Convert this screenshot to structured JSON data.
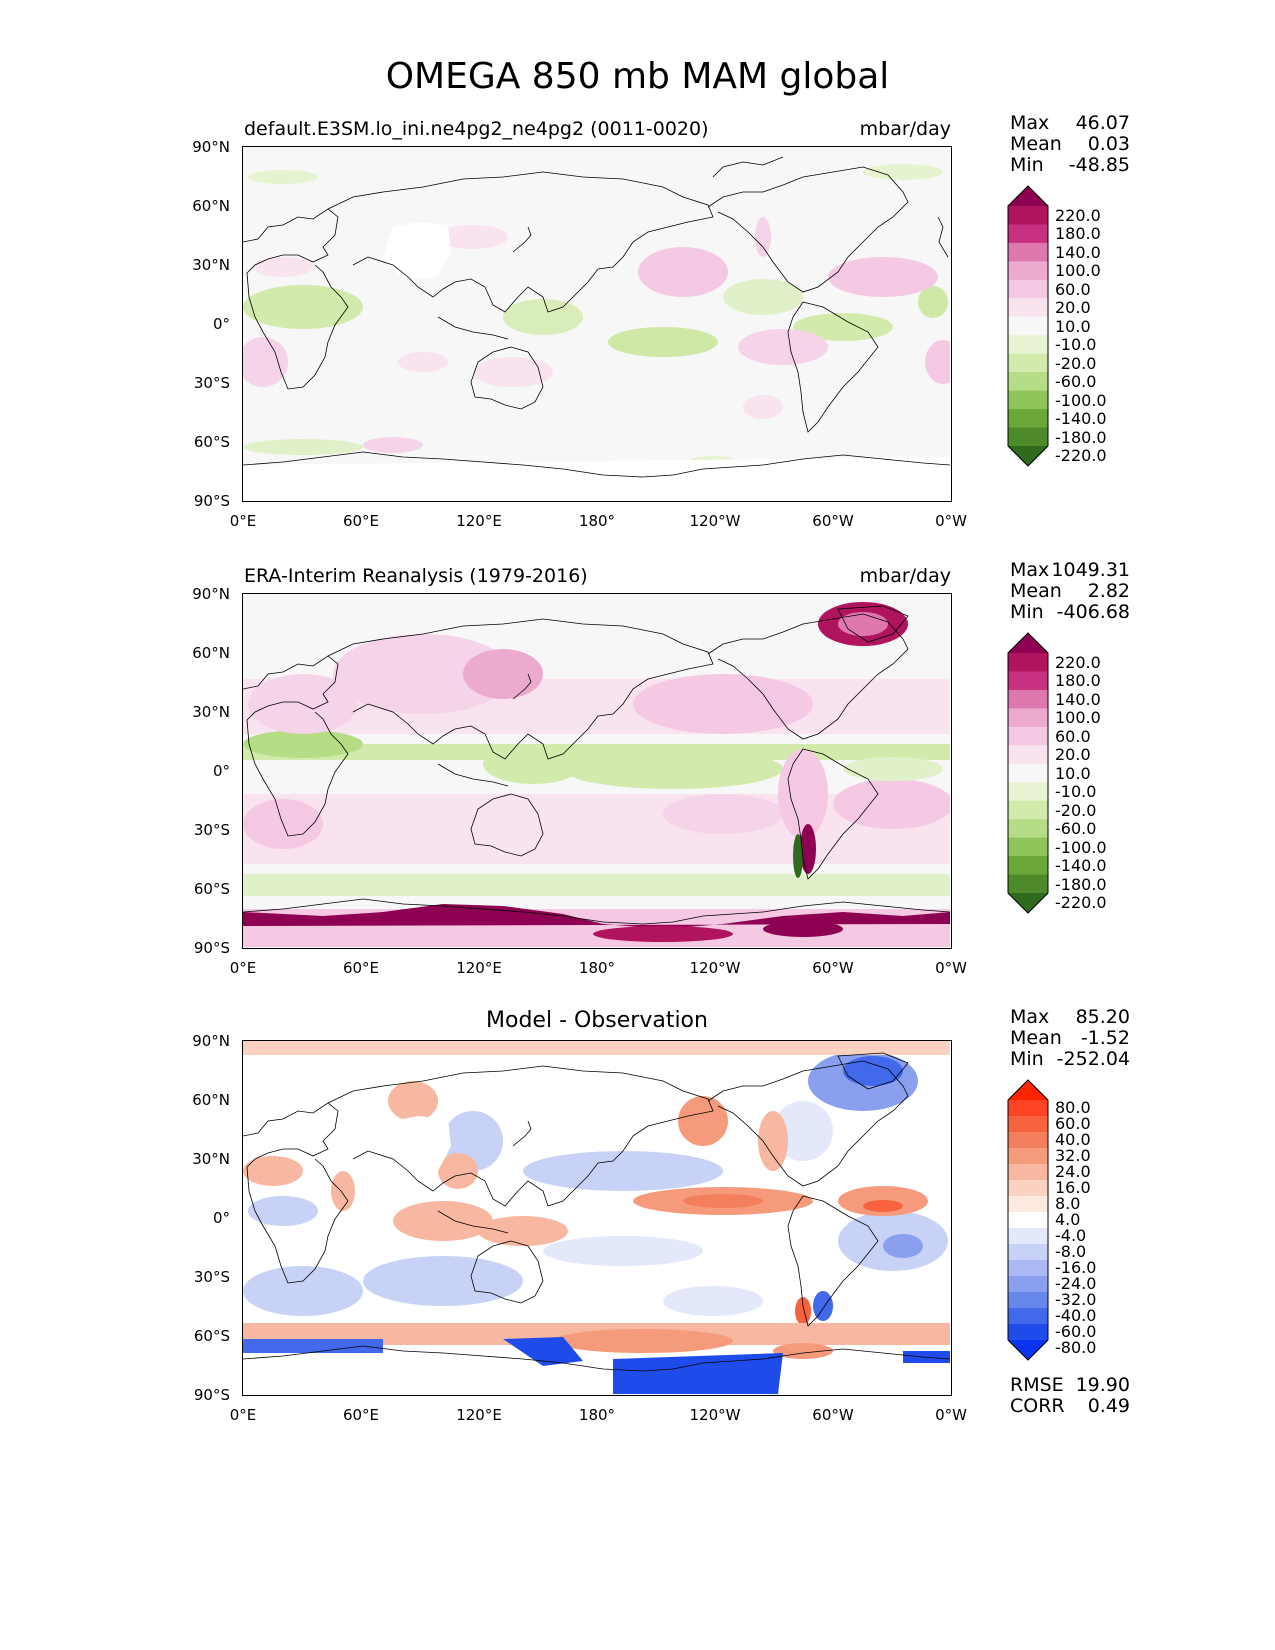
{
  "title": "OMEGA 850 mb MAM global",
  "panels": [
    {
      "title": "default.E3SM.lo_ini.ne4pg2_ne4pg2 (0011-0020)",
      "units": "mbar/day",
      "stats": [
        {
          "label": "Max",
          "value": "46.07"
        },
        {
          "label": "Mean",
          "value": "0.03"
        },
        {
          "label": "Min",
          "value": "-48.85"
        }
      ]
    },
    {
      "title": "ERA-Interim Reanalysis (1979-2016)",
      "units": "mbar/day",
      "stats": [
        {
          "label": "Max",
          "value": "1049.31"
        },
        {
          "label": "Mean",
          "value": "2.82"
        },
        {
          "label": "Min",
          "value": "-406.68"
        }
      ]
    },
    {
      "title": "Model - Observation",
      "units": "",
      "stats": [
        {
          "label": "Max",
          "value": "85.20"
        },
        {
          "label": "Mean",
          "value": "-1.52"
        },
        {
          "label": "Min",
          "value": "-252.04"
        }
      ],
      "extra_stats": [
        {
          "label": "RMSE",
          "value": "19.90"
        },
        {
          "label": "CORR",
          "value": "0.49"
        }
      ]
    }
  ],
  "axes": {
    "x_ticks": [
      "0°E",
      "60°E",
      "120°E",
      "180°",
      "120°W",
      "60°W",
      "0°W"
    ],
    "y_ticks": [
      "90°N",
      "60°N",
      "30°N",
      "0°",
      "30°S",
      "60°S",
      "90°S"
    ]
  },
  "colorbars": {
    "field": {
      "levels": [
        "220.0",
        "180.0",
        "140.0",
        "100.0",
        "60.0",
        "20.0",
        "10.0",
        "-10.0",
        "-20.0",
        "-60.0",
        "-100.0",
        "-140.0",
        "-180.0",
        "-220.0"
      ],
      "colors": [
        "#8e0152",
        "#b0145f",
        "#c8317f",
        "#de77ae",
        "#ecaacf",
        "#f5c9e3",
        "#f9e3ef",
        "#f7f7f7",
        "#e8f4d4",
        "#d2ebac",
        "#b5dd85",
        "#8fc45a",
        "#6aa638",
        "#4d8b2a",
        "#2f6b1c"
      ]
    },
    "diff": {
      "levels": [
        "80.0",
        "60.0",
        "40.0",
        "32.0",
        "24.0",
        "16.0",
        "8.0",
        "4.0",
        "-4.0",
        "-8.0",
        "-16.0",
        "-24.0",
        "-32.0",
        "-40.0",
        "-60.0",
        "-80.0"
      ],
      "colors": [
        "#ff2400",
        "#fe4424",
        "#f8633f",
        "#f47f5c",
        "#f59b7c",
        "#f8b7a0",
        "#fbd2c2",
        "#fde9e0",
        "#ffffff",
        "#e3e8fb",
        "#c8d2f7",
        "#aab9f3",
        "#8aa0ef",
        "#6786ec",
        "#4169ea",
        "#1e4bea",
        "#0b33f2"
      ]
    }
  }
}
